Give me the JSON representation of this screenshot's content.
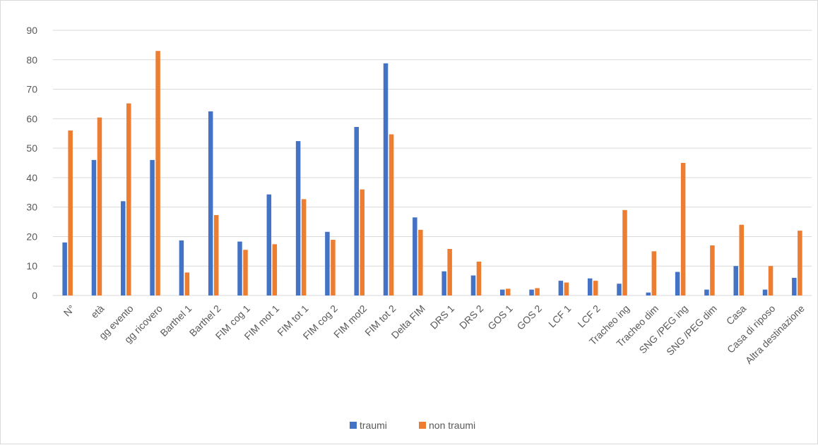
{
  "chart_data": {
    "type": "bar",
    "title": "",
    "xlabel": "",
    "ylabel": "",
    "ylim": [
      0,
      90
    ],
    "yticks": [
      0,
      10,
      20,
      30,
      40,
      50,
      60,
      70,
      80,
      90
    ],
    "grid": true,
    "legend_position": "bottom",
    "categories": [
      "N°",
      "età",
      "gg evento",
      "gg ricovero",
      "Barthel 1",
      "Barthel 2",
      "FIM cog 1",
      "FIM mot 1",
      "FIM tot 1",
      "FIM cog 2",
      "FIM mot2",
      "FIM tot 2",
      "Delta FIM",
      "DRS 1",
      "DRS 2",
      "GOS 1",
      "GOS 2",
      "LCF 1",
      "LCF 2",
      "Tracheo ing",
      "Tracheo dim",
      "SNG /PEG ing",
      "SNG /PEG dim",
      "Casa",
      "Casa di riposo",
      "Altra destinazione"
    ],
    "series": [
      {
        "name": "traumi",
        "color": "#4472c4",
        "values": [
          18,
          46,
          32,
          46,
          18.7,
          62.5,
          18.3,
          34.3,
          52.4,
          21.6,
          57.2,
          78.8,
          26.5,
          8.2,
          6.8,
          2,
          2,
          5,
          5.8,
          4,
          1,
          8,
          2,
          10,
          2,
          6
        ]
      },
      {
        "name": "non traumi",
        "color": "#ed7d31",
        "values": [
          56,
          60.4,
          65.2,
          83,
          7.8,
          27.3,
          15.5,
          17.4,
          32.7,
          18.9,
          36,
          54.7,
          22.3,
          15.8,
          11.5,
          2.3,
          2.5,
          4.4,
          5,
          29,
          15,
          45,
          17,
          24,
          10,
          22
        ]
      }
    ]
  }
}
